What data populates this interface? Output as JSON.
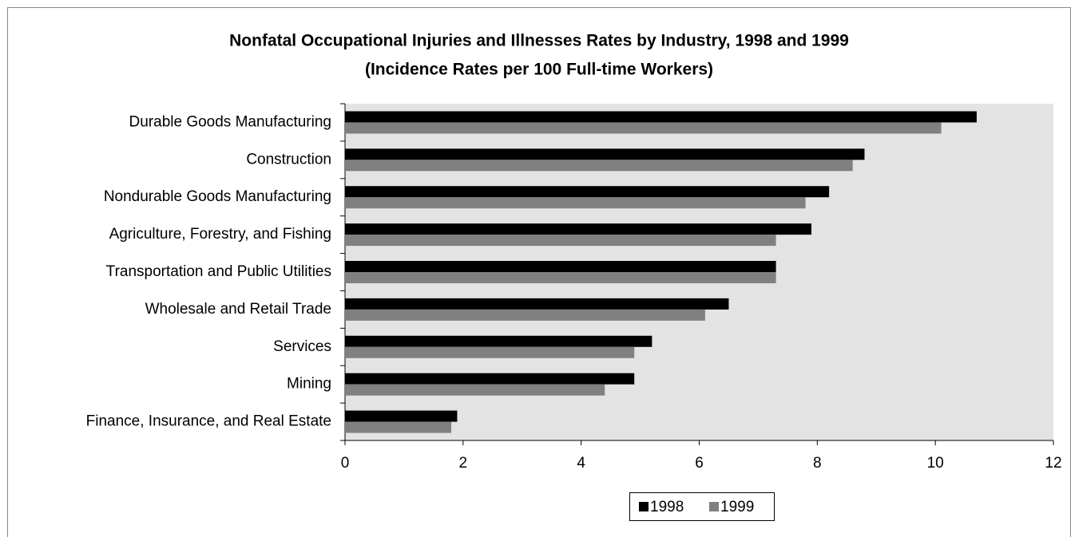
{
  "chart_data": {
    "type": "bar",
    "orientation": "horizontal",
    "title": "Nonfatal Occupational Injuries and Illnesses Rates by Industry, 1998 and 1999",
    "subtitle": "(Incidence Rates per 100 Full-time Workers)",
    "categories": [
      "Durable Goods Manufacturing",
      "Construction",
      "Nondurable Goods Manufacturing",
      "Agriculture, Forestry, and Fishing",
      "Transportation and Public Utilities",
      "Wholesale and Retail Trade",
      "Services",
      "Mining",
      "Finance, Insurance, and Real Estate"
    ],
    "series": [
      {
        "name": "1998",
        "color": "#000000",
        "values": [
          10.7,
          8.8,
          8.2,
          7.9,
          7.3,
          6.5,
          5.2,
          4.9,
          1.9
        ]
      },
      {
        "name": "1999",
        "color": "#808080",
        "values": [
          10.1,
          8.6,
          7.8,
          7.3,
          7.3,
          6.1,
          4.9,
          4.4,
          1.8
        ]
      }
    ],
    "xlim": [
      0,
      12
    ],
    "xticks": [
      0,
      2,
      4,
      6,
      8,
      10,
      12
    ],
    "legend": "bottom",
    "plot_background": "#e3e3e3"
  }
}
